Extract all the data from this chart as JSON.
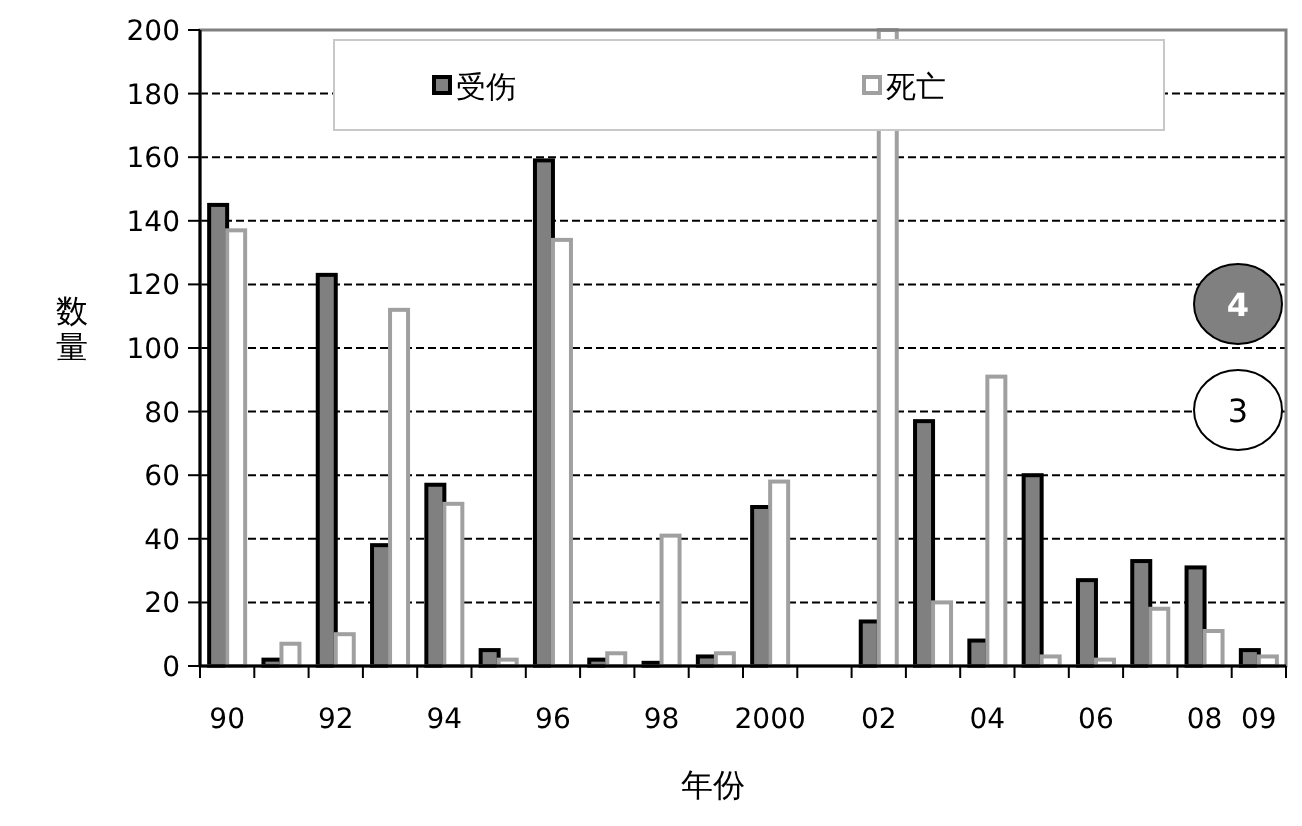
{
  "chart_data": {
    "type": "bar",
    "xlabel": "年份",
    "ylabel": "数量",
    "categories": [
      "90",
      null,
      "92",
      null,
      "94",
      null,
      "96",
      null,
      "98",
      null,
      "2000",
      null,
      "02",
      null,
      "04",
      null,
      "06",
      null,
      "08",
      "09"
    ],
    "series": [
      {
        "name": "受伤",
        "color": "#808080",
        "values": [
          145,
          2,
          123,
          38,
          57,
          5,
          159,
          2,
          1,
          3,
          50,
          0,
          14,
          77,
          8,
          60,
          27,
          33,
          31,
          5
        ]
      },
      {
        "name": "死亡",
        "color": "#ffffff",
        "values": [
          137,
          7,
          10,
          112,
          51,
          2,
          134,
          4,
          41,
          4,
          58,
          0,
          200,
          20,
          91,
          3,
          2,
          18,
          11,
          3
        ]
      }
    ],
    "ylim": [
      0,
      200
    ],
    "yticks": [
      0,
      20,
      40,
      60,
      80,
      100,
      120,
      140,
      160,
      180,
      200
    ],
    "grid": "y",
    "legend": "top",
    "annotations": [
      "4",
      "3"
    ]
  }
}
